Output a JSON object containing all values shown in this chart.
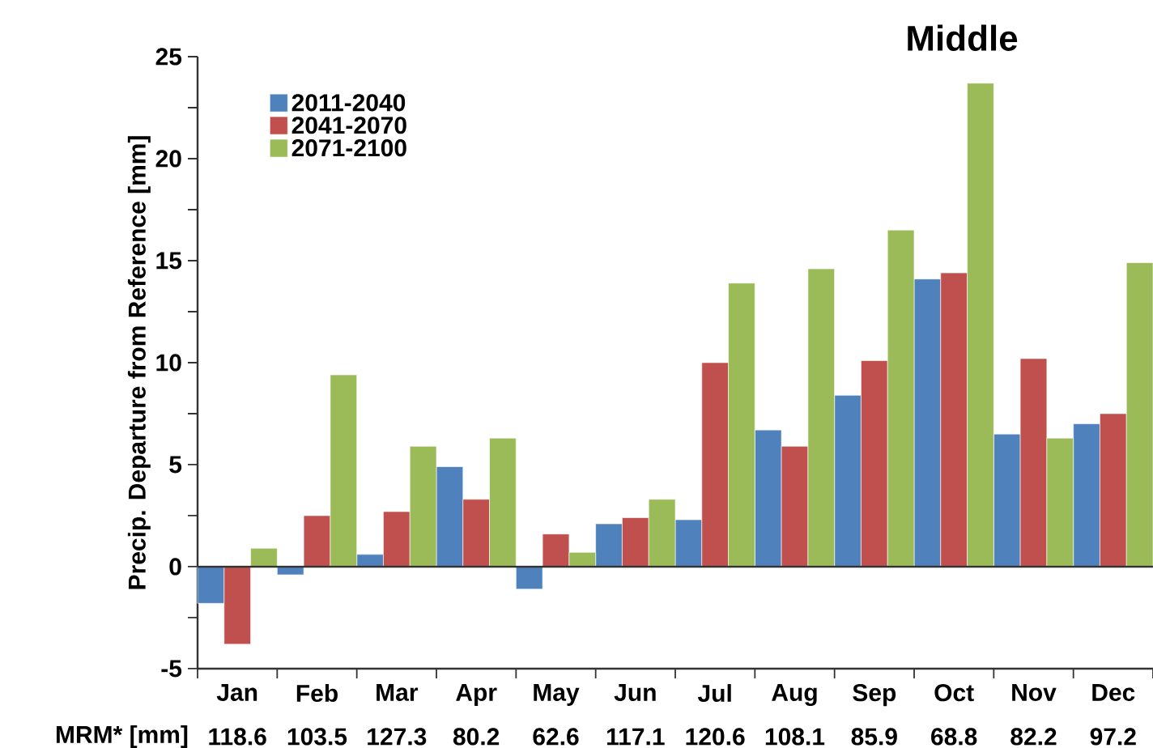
{
  "chart_data": {
    "type": "bar",
    "title": "Middle",
    "ylabel": "Precip. Departure from Reference  [mm]",
    "categories": [
      "Jan",
      "Feb",
      "Mar",
      "Apr",
      "May",
      "Jun",
      "Jul",
      "Aug",
      "Sep",
      "Oct",
      "Nov",
      "Dec"
    ],
    "series": [
      {
        "name": "2011-2040",
        "color": "#4f81bd",
        "values": [
          -1.8,
          -0.4,
          0.6,
          4.9,
          -1.1,
          2.1,
          2.3,
          6.7,
          8.4,
          14.1,
          6.5,
          7.0
        ]
      },
      {
        "name": "2041-2070",
        "color": "#c0504d",
        "values": [
          -3.8,
          2.5,
          2.7,
          3.3,
          1.6,
          2.4,
          10.0,
          5.9,
          10.1,
          14.4,
          10.2,
          7.5
        ]
      },
      {
        "name": "2071-2100",
        "color": "#9bbb59",
        "values": [
          0.9,
          9.4,
          5.9,
          6.3,
          0.7,
          3.3,
          13.9,
          14.6,
          16.5,
          23.7,
          6.3,
          14.9
        ]
      }
    ],
    "ylim": [
      -5,
      25
    ],
    "yticks": [
      -5,
      0,
      5,
      10,
      15,
      20,
      25
    ],
    "grid": false,
    "legend": "top left",
    "ref_lines": [
      {
        "axis": "y",
        "value": 0
      }
    ],
    "annotations": [
      "MRM*  [mm]",
      "118.6",
      "103.5",
      "127.3",
      "80.2",
      "62.6",
      "117.1",
      "120.6",
      "108.1",
      "85.9",
      "68.8",
      "82.2",
      "97.2"
    ]
  }
}
